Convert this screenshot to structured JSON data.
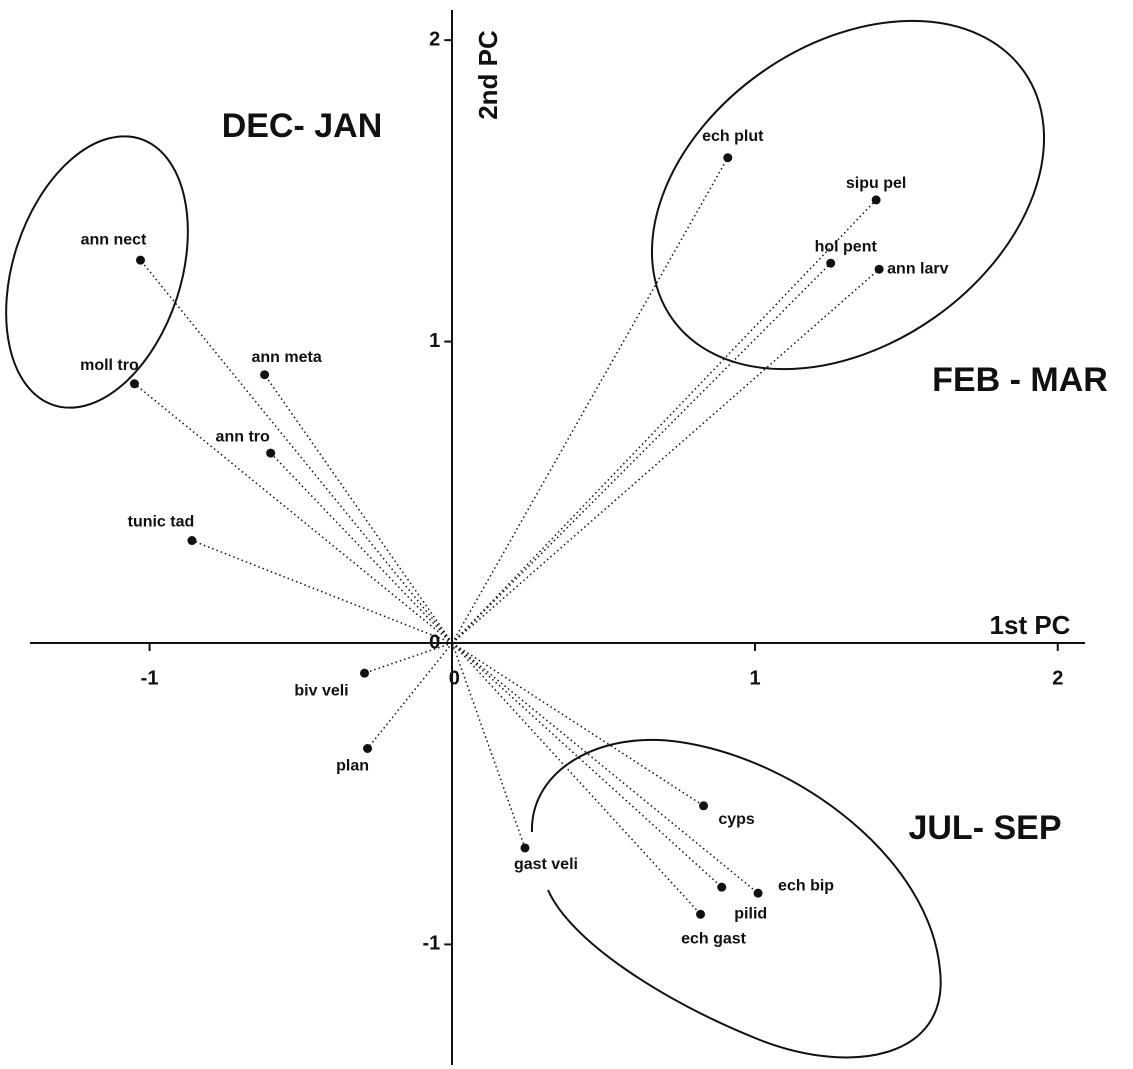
{
  "chart_data": {
    "type": "biplot",
    "xlabel": "1st PC",
    "ylabel": "2nd PC",
    "labels": [
      "ann nect",
      "moll tro",
      "ann meta",
      "ann tro",
      "tunic tad",
      "biv veli",
      "plan",
      "gast veli",
      "cyps",
      "ech bip",
      "pilid",
      "ech gast",
      "ech plut",
      "sipu pel",
      "hol pent",
      "ann larv"
    ],
    "x": [
      -1.03,
      -1.05,
      -0.62,
      -0.6,
      -0.86,
      -0.29,
      -0.28,
      0.24,
      0.83,
      1.01,
      0.89,
      0.82,
      0.91,
      1.4,
      1.25,
      1.41
    ],
    "values": [
      1.27,
      0.86,
      0.89,
      0.63,
      0.34,
      -0.1,
      -0.35,
      -0.68,
      -0.54,
      -0.83,
      -0.81,
      -0.9,
      1.61,
      1.47,
      1.26,
      1.24
    ],
    "annotations": [
      "DEC- JAN",
      "FEB - MAR",
      "JUL- SEP"
    ],
    "xlim": [
      -1.395,
      2.09
    ],
    "ylim": [
      -1.4,
      2.1
    ],
    "xticks": [
      -1,
      0,
      1,
      2
    ],
    "yticks": [
      -1,
      0,
      1,
      2
    ],
    "color": "#111111"
  }
}
